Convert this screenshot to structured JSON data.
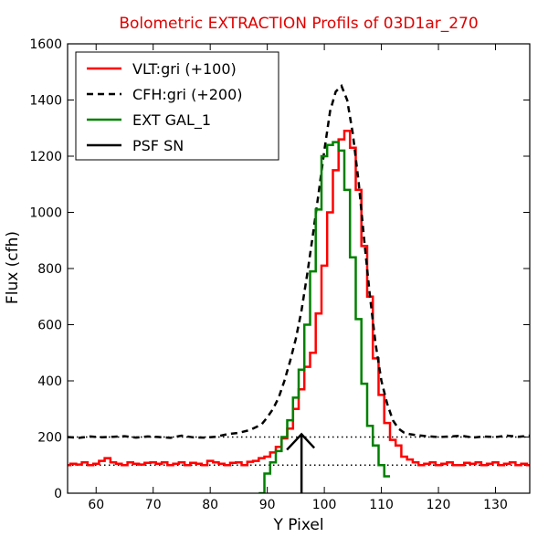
{
  "chart_data": {
    "type": "line",
    "title": "Bolometric EXTRACTION Profils of 03D1ar_270",
    "title_color": "#e00000",
    "xlabel": "Y Pixel",
    "ylabel": "Flux (cfh)",
    "xlim": [
      55,
      136
    ],
    "ylim": [
      0,
      1600
    ],
    "xticks": [
      60,
      70,
      80,
      90,
      100,
      110,
      120,
      130
    ],
    "yticks": [
      0,
      200,
      400,
      600,
      800,
      1000,
      1200,
      1400,
      1600
    ],
    "grid": false,
    "legend_position": "top-left",
    "series": [
      {
        "name": "VLT:gri (+100)",
        "color": "#ff0000",
        "style": "steps",
        "x": [
          55,
          56,
          57,
          58,
          59,
          60,
          61,
          62,
          63,
          64,
          65,
          66,
          67,
          68,
          69,
          70,
          71,
          72,
          73,
          74,
          75,
          76,
          77,
          78,
          79,
          80,
          81,
          82,
          83,
          84,
          85,
          86,
          87,
          88,
          89,
          90,
          91,
          92,
          93,
          94,
          95,
          96,
          97,
          98,
          99,
          100,
          101,
          102,
          103,
          104,
          105,
          106,
          107,
          108,
          109,
          110,
          111,
          112,
          113,
          114,
          115,
          116,
          117,
          118,
          119,
          120,
          121,
          122,
          123,
          124,
          125,
          126,
          127,
          128,
          129,
          130,
          131,
          132,
          133,
          134,
          135,
          136
        ],
        "y": [
          100,
          105,
          102,
          110,
          100,
          105,
          115,
          125,
          110,
          105,
          100,
          110,
          105,
          102,
          108,
          110,
          105,
          110,
          100,
          105,
          110,
          100,
          108,
          105,
          100,
          115,
          110,
          105,
          100,
          108,
          110,
          100,
          112,
          115,
          125,
          130,
          145,
          165,
          195,
          230,
          300,
          370,
          450,
          500,
          640,
          810,
          1000,
          1150,
          1260,
          1290,
          1230,
          1080,
          880,
          700,
          480,
          350,
          250,
          190,
          170,
          130,
          120,
          110,
          100,
          105,
          110,
          100,
          105,
          110,
          100,
          100,
          108,
          105,
          110,
          100,
          105,
          110,
          100,
          105,
          110,
          100,
          105,
          100
        ]
      },
      {
        "name": "CFH:gri (+200)",
        "color": "#000000",
        "style": "dashed",
        "x": [
          55,
          57,
          59,
          61,
          63,
          65,
          67,
          69,
          71,
          73,
          75,
          77,
          79,
          81,
          83,
          85,
          87,
          89,
          90,
          91,
          92,
          93,
          94,
          95,
          96,
          97,
          98,
          99,
          100,
          101,
          102,
          103,
          104,
          105,
          106,
          107,
          108,
          109,
          110,
          111,
          112,
          113,
          114,
          115,
          116,
          118,
          120,
          122,
          124,
          126,
          128,
          130,
          132,
          134,
          136
        ],
        "y": [
          200,
          197,
          202,
          199,
          201,
          203,
          198,
          202,
          200,
          197,
          205,
          199,
          198,
          201,
          210,
          215,
          225,
          245,
          270,
          300,
          340,
          400,
          470,
          550,
          650,
          780,
          920,
          1070,
          1220,
          1360,
          1430,
          1450,
          1400,
          1280,
          1110,
          900,
          700,
          530,
          400,
          320,
          260,
          230,
          215,
          210,
          207,
          203,
          200,
          202,
          205,
          198,
          202,
          200,
          205,
          201,
          205
        ]
      },
      {
        "name": "EXT GAL_1",
        "color": "#008000",
        "style": "steps",
        "x": [
          89,
          90,
          91,
          92,
          93,
          94,
          95,
          96,
          97,
          98,
          99,
          100,
          101,
          102,
          103,
          104,
          105,
          106,
          107,
          108,
          109,
          110,
          111
        ],
        "y": [
          0,
          70,
          110,
          150,
          200,
          260,
          340,
          440,
          600,
          790,
          1010,
          1200,
          1240,
          1250,
          1220,
          1080,
          840,
          620,
          390,
          240,
          170,
          100,
          60
        ]
      },
      {
        "name": "PSF SN",
        "color": "#000000",
        "style": "arrow",
        "x": [
          96
        ],
        "y": [
          210
        ]
      }
    ],
    "reference_lines": [
      {
        "y": 200,
        "style": "dotted"
      },
      {
        "y": 100,
        "style": "dotted"
      }
    ]
  }
}
